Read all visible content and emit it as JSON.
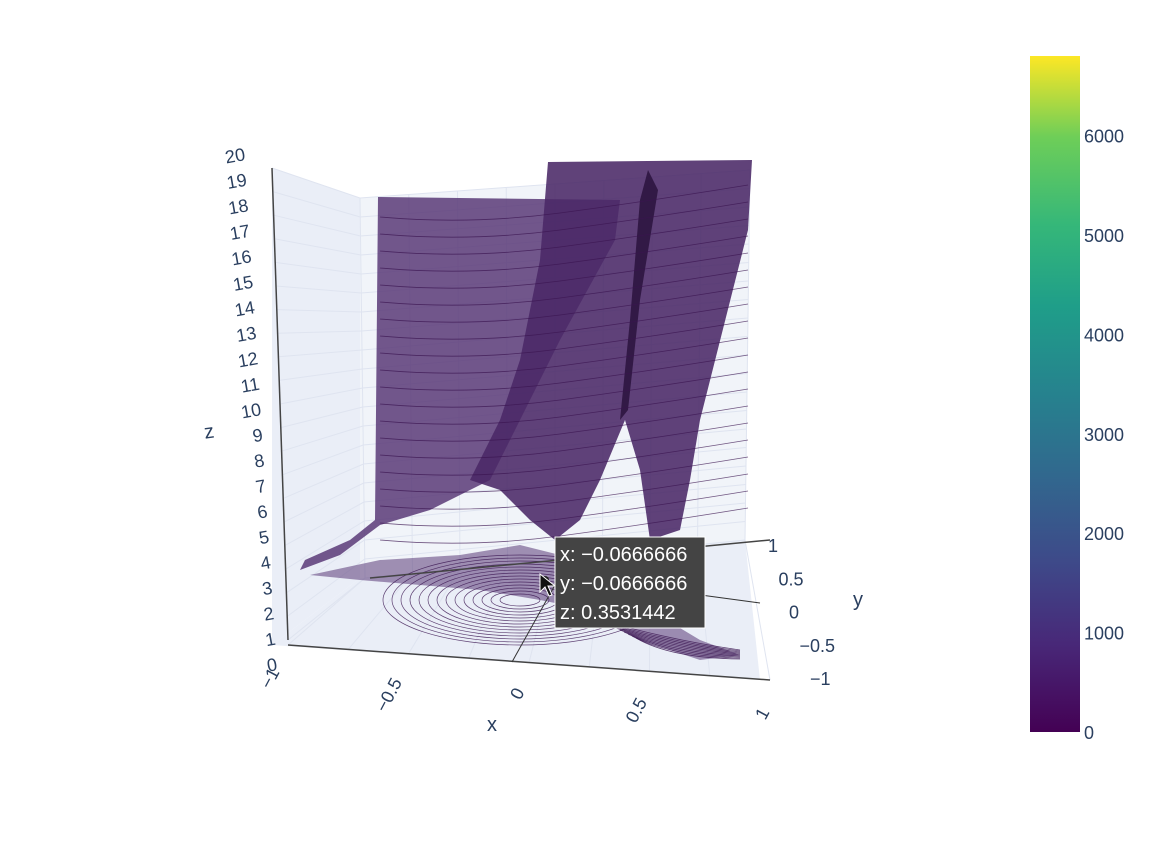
{
  "chart_data": {
    "type": "surface",
    "colorscale": "viridis",
    "colors": {
      "surface": "#4a2866",
      "surface_light": "#6a4d82",
      "contour": "#3a1450",
      "grid": "#dfe4f0",
      "pane": "#e8ecf6",
      "tooltip_bg": "#444444"
    },
    "axes": {
      "x": {
        "title": "x",
        "range": [
          -1,
          1
        ],
        "tick_values": [
          -1,
          -0.5,
          0,
          0.5,
          1
        ],
        "tick_labels": [
          "−1",
          "−0.5",
          "0",
          "0.5",
          "1"
        ]
      },
      "y": {
        "title": "y",
        "range": [
          -1,
          1
        ],
        "tick_values": [
          -1,
          -0.5,
          0,
          0.5,
          1
        ],
        "tick_labels": [
          "−1",
          "−0.5",
          "0",
          "0.5",
          "1"
        ]
      },
      "z": {
        "title": "z",
        "range": [
          0,
          20
        ],
        "tick_values": [
          0,
          1,
          2,
          3,
          4,
          5,
          6,
          7,
          8,
          9,
          10,
          11,
          12,
          13,
          14,
          15,
          16,
          17,
          18,
          19,
          20
        ],
        "tick_labels": [
          "0",
          "1",
          "2",
          "3",
          "4",
          "5",
          "6",
          "7",
          "8",
          "9",
          "10",
          "11",
          "12",
          "13",
          "14",
          "15",
          "16",
          "17",
          "18",
          "19",
          "20"
        ]
      }
    },
    "colorbar": {
      "range": [
        0,
        6800
      ],
      "tick_values": [
        0,
        1000,
        2000,
        3000,
        4000,
        5000,
        6000
      ],
      "tick_labels": [
        "0",
        "1000",
        "2000",
        "3000",
        "4000",
        "5000",
        "6000"
      ]
    },
    "hover": {
      "x_line": "x: −0.0666666",
      "y_line": "y: −0.0666666",
      "z_line": "z: 0.3531442",
      "point": {
        "x": -0.0666666,
        "y": -0.0666666,
        "z": 0.3531442
      }
    }
  }
}
